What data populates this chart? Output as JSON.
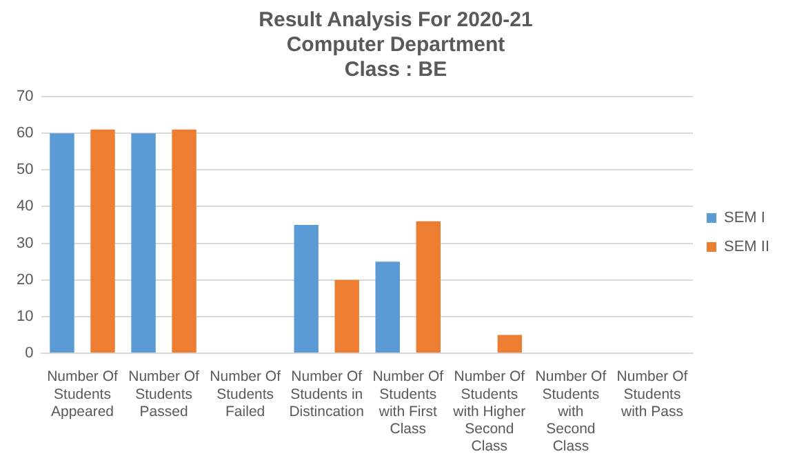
{
  "chart_data": {
    "type": "bar",
    "title": "Result Analysis For 2020-21",
    "subtitle": "Computer Department\nClass : BE",
    "categories": [
      "Number Of Students Appeared",
      "Number Of Students Passed",
      "Number Of Students Failed",
      "Number Of Students in Distincation",
      "Number Of Students with First Class",
      "Number Of Students with Higher Second Class",
      "Number Of Students with Second Class",
      "Number Of Students with Pass"
    ],
    "series": [
      {
        "name": "SEM I",
        "color": "#5b9bd5",
        "values": [
          60,
          60,
          0,
          35,
          25,
          0,
          0,
          0
        ]
      },
      {
        "name": "SEM II",
        "color": "#ed7d31",
        "values": [
          61,
          61,
          0,
          20,
          36,
          5,
          0,
          0
        ]
      }
    ],
    "ylim": [
      0,
      70
    ],
    "yticks": [
      0,
      10,
      20,
      30,
      40,
      50,
      60,
      70
    ],
    "grid": "y",
    "legend": "right"
  }
}
